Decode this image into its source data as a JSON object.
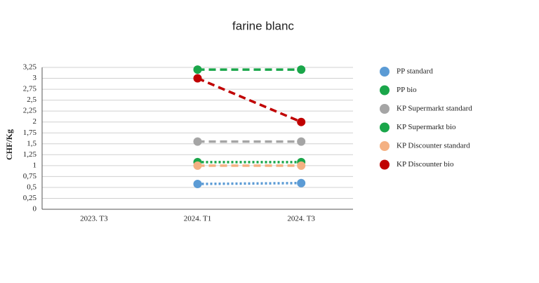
{
  "chart_data": {
    "type": "line",
    "title": "farine blanc",
    "y_label": "CHF/Kg",
    "categories": [
      "2023. T3",
      "2024. T1",
      "2024. T3"
    ],
    "ylim": [
      0,
      3.25
    ],
    "yticks": [
      0,
      {
        "value": 0.25,
        "label": "0,25"
      },
      {
        "value": 0.5,
        "label": "0,5"
      },
      {
        "value": 0.75,
        "label": "0,75"
      },
      1,
      {
        "value": 1.25,
        "label": "1,25"
      },
      {
        "value": 1.5,
        "label": "1,5"
      },
      {
        "value": 1.75,
        "label": "1,75"
      },
      2,
      {
        "value": 2.25,
        "label": "2,25"
      },
      {
        "value": 2.5,
        "label": "2,5"
      },
      {
        "value": 2.75,
        "label": "2,75"
      },
      3,
      {
        "value": 3.25,
        "label": "3,25"
      }
    ],
    "grid": true,
    "legend": "right",
    "series": [
      {
        "name": "PP standard",
        "color": "#5b9bd5",
        "dash": "dotted",
        "values": [
          null,
          0.58,
          0.6
        ]
      },
      {
        "name": "PP bio",
        "color": "#1aa64a",
        "dash": "dashed",
        "values": [
          null,
          3.2,
          3.2
        ]
      },
      {
        "name": "KP Supermarkt standard",
        "color": "#a5a5a5",
        "dash": "dashed",
        "values": [
          null,
          1.55,
          1.55
        ]
      },
      {
        "name": "KP Supermarkt bio",
        "color": "#1aa64a",
        "dash": "dotted",
        "values": [
          null,
          1.08,
          1.08
        ]
      },
      {
        "name": "KP Discounter standard",
        "color": "#f4b183",
        "dash": "dashed",
        "values": [
          null,
          1.0,
          1.0
        ]
      },
      {
        "name": "KP Discounter bio",
        "color": "#c00000",
        "dash": "dashed",
        "values": [
          null,
          3.0,
          2.0
        ]
      }
    ]
  }
}
